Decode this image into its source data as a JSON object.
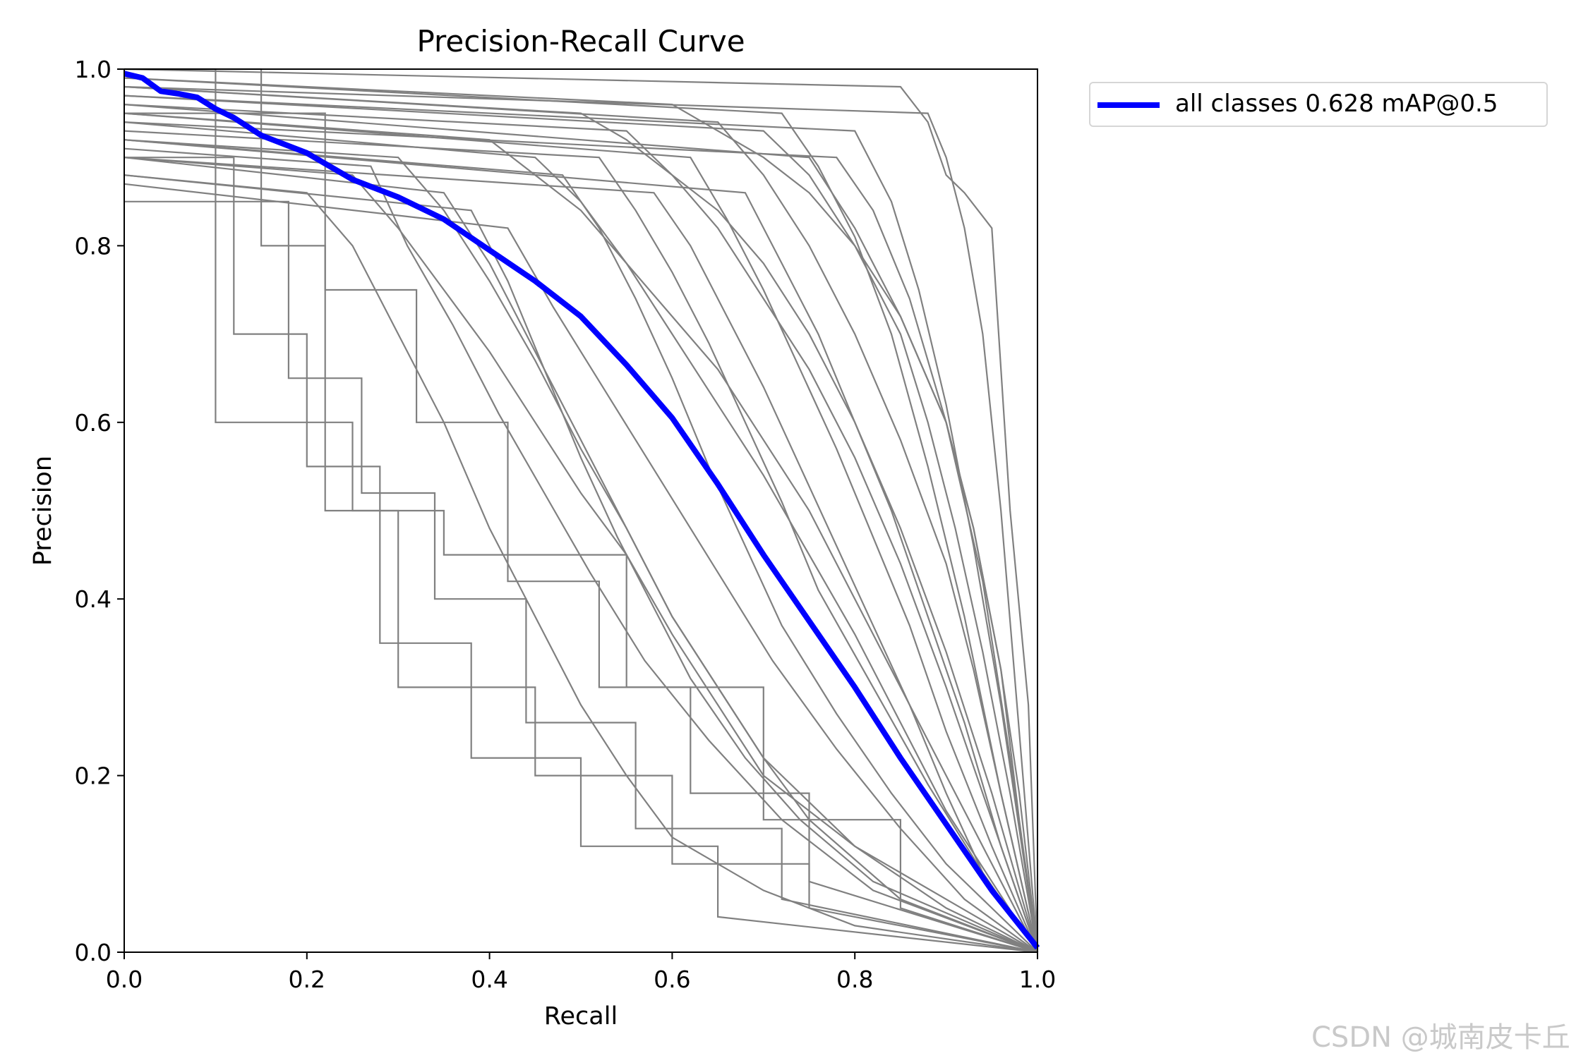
{
  "chart_data": {
    "type": "line",
    "title": "Precision-Recall Curve",
    "xlabel": "Recall",
    "ylabel": "Precision",
    "xlim": [
      0.0,
      1.0
    ],
    "ylim": [
      0.0,
      1.0
    ],
    "xticks": [
      "0.0",
      "0.2",
      "0.4",
      "0.6",
      "0.8",
      "1.0"
    ],
    "yticks": [
      "0.0",
      "0.2",
      "0.4",
      "0.6",
      "0.8",
      "1.0"
    ],
    "grid": false,
    "legend_position": "outside-top-right",
    "main_series": {
      "name": "all classes 0.628 mAP@0.5",
      "color": "#0000ff",
      "x": [
        0.0,
        0.02,
        0.04,
        0.06,
        0.08,
        0.1,
        0.12,
        0.15,
        0.2,
        0.25,
        0.3,
        0.35,
        0.4,
        0.45,
        0.5,
        0.55,
        0.6,
        0.65,
        0.7,
        0.75,
        0.8,
        0.85,
        0.9,
        0.95,
        1.0
      ],
      "y": [
        0.995,
        0.99,
        0.975,
        0.972,
        0.968,
        0.955,
        0.945,
        0.925,
        0.905,
        0.875,
        0.855,
        0.83,
        0.795,
        0.76,
        0.72,
        0.665,
        0.605,
        0.53,
        0.45,
        0.375,
        0.3,
        0.22,
        0.145,
        0.07,
        0.005
      ]
    },
    "class_series_color": "#808080",
    "class_series": [
      {
        "x": [
          0.0,
          0.1,
          0.1,
          0.25,
          0.25,
          0.35,
          0.35,
          0.55,
          0.55,
          0.7,
          0.7,
          0.85,
          0.85,
          1.0
        ],
        "y": [
          1.0,
          1.0,
          0.6,
          0.6,
          0.5,
          0.5,
          0.45,
          0.45,
          0.3,
          0.3,
          0.15,
          0.15,
          0.05,
          0.0
        ]
      },
      {
        "x": [
          0.0,
          0.15,
          0.15,
          0.22,
          0.22,
          0.3,
          0.3,
          0.45,
          0.45,
          0.6,
          0.6,
          0.75,
          0.75,
          1.0
        ],
        "y": [
          1.0,
          1.0,
          0.8,
          0.8,
          0.5,
          0.5,
          0.3,
          0.3,
          0.2,
          0.2,
          0.1,
          0.1,
          0.05,
          0.0
        ]
      },
      {
        "x": [
          0.0,
          0.25,
          0.3,
          0.35,
          0.4,
          0.45,
          0.5,
          0.55,
          0.6,
          0.65,
          0.7,
          0.8,
          0.9,
          1.0
        ],
        "y": [
          0.9,
          0.88,
          0.82,
          0.75,
          0.68,
          0.6,
          0.52,
          0.45,
          0.36,
          0.28,
          0.2,
          0.12,
          0.06,
          0.0
        ]
      },
      {
        "x": [
          0.0,
          0.4,
          0.45,
          0.5,
          0.55,
          0.6,
          0.65,
          0.7,
          0.75,
          0.8,
          0.85,
          0.9,
          0.95,
          1.0
        ],
        "y": [
          0.95,
          0.92,
          0.88,
          0.84,
          0.78,
          0.72,
          0.66,
          0.58,
          0.5,
          0.4,
          0.3,
          0.2,
          0.1,
          0.0
        ]
      },
      {
        "x": [
          0.0,
          0.5,
          0.55,
          0.6,
          0.65,
          0.7,
          0.75,
          0.8,
          0.85,
          0.9,
          0.95,
          1.0
        ],
        "y": [
          0.98,
          0.95,
          0.92,
          0.88,
          0.84,
          0.78,
          0.7,
          0.6,
          0.48,
          0.34,
          0.18,
          0.0
        ]
      },
      {
        "x": [
          0.0,
          0.6,
          0.65,
          0.7,
          0.75,
          0.8,
          0.85,
          0.9,
          0.93,
          0.96,
          0.98,
          1.0
        ],
        "y": [
          0.99,
          0.96,
          0.93,
          0.9,
          0.86,
          0.8,
          0.72,
          0.6,
          0.48,
          0.32,
          0.15,
          0.0
        ]
      },
      {
        "x": [
          0.0,
          0.7,
          0.75,
          0.8,
          0.85,
          0.88,
          0.91,
          0.94,
          0.97,
          1.0
        ],
        "y": [
          0.97,
          0.93,
          0.88,
          0.8,
          0.7,
          0.6,
          0.48,
          0.34,
          0.18,
          0.0
        ]
      },
      {
        "x": [
          0.0,
          0.85,
          0.88,
          0.9,
          0.92,
          0.95,
          0.97,
          0.99,
          1.0
        ],
        "y": [
          1.0,
          0.98,
          0.94,
          0.88,
          0.86,
          0.82,
          0.5,
          0.28,
          0.0
        ]
      },
      {
        "x": [
          0.0,
          0.2,
          0.25,
          0.3,
          0.35,
          0.4,
          0.45,
          0.5,
          0.55,
          0.6,
          0.7,
          0.8,
          1.0
        ],
        "y": [
          0.88,
          0.86,
          0.8,
          0.7,
          0.6,
          0.48,
          0.38,
          0.28,
          0.2,
          0.13,
          0.07,
          0.03,
          0.0
        ]
      },
      {
        "x": [
          0.0,
          0.3,
          0.35,
          0.4,
          0.45,
          0.5,
          0.55,
          0.6,
          0.65,
          0.7,
          0.8,
          0.9,
          1.0
        ],
        "y": [
          0.92,
          0.9,
          0.84,
          0.76,
          0.67,
          0.57,
          0.48,
          0.38,
          0.3,
          0.22,
          0.12,
          0.05,
          0.0
        ]
      },
      {
        "x": [
          0.0,
          0.45,
          0.5,
          0.55,
          0.6,
          0.65,
          0.7,
          0.75,
          0.8,
          0.85,
          0.9,
          0.95,
          1.0
        ],
        "y": [
          0.94,
          0.9,
          0.85,
          0.78,
          0.7,
          0.62,
          0.54,
          0.45,
          0.36,
          0.26,
          0.16,
          0.08,
          0.0
        ]
      },
      {
        "x": [
          0.0,
          0.55,
          0.6,
          0.65,
          0.7,
          0.75,
          0.8,
          0.85,
          0.9,
          0.95,
          1.0
        ],
        "y": [
          0.96,
          0.93,
          0.88,
          0.82,
          0.74,
          0.66,
          0.56,
          0.44,
          0.3,
          0.15,
          0.0
        ]
      },
      {
        "x": [
          0.0,
          0.65,
          0.7,
          0.75,
          0.8,
          0.85,
          0.9,
          0.93,
          0.96,
          1.0
        ],
        "y": [
          0.98,
          0.94,
          0.88,
          0.8,
          0.7,
          0.58,
          0.44,
          0.32,
          0.18,
          0.0
        ]
      },
      {
        "x": [
          0.0,
          0.75,
          0.8,
          0.85,
          0.9,
          0.93,
          0.96,
          0.98,
          1.0
        ],
        "y": [
          0.96,
          0.9,
          0.82,
          0.72,
          0.6,
          0.48,
          0.32,
          0.18,
          0.0
        ]
      },
      {
        "x": [
          0.0,
          0.35,
          0.4,
          0.45,
          0.5,
          0.55,
          0.6,
          0.65,
          0.7,
          0.75,
          0.85,
          1.0
        ],
        "y": [
          0.9,
          0.86,
          0.78,
          0.68,
          0.58,
          0.48,
          0.38,
          0.3,
          0.22,
          0.15,
          0.06,
          0.0
        ]
      },
      {
        "x": [
          0.0,
          0.12,
          0.12,
          0.2,
          0.2,
          0.28,
          0.28,
          0.38,
          0.38,
          0.5,
          0.5,
          0.65,
          0.65,
          1.0
        ],
        "y": [
          0.9,
          0.9,
          0.7,
          0.7,
          0.55,
          0.55,
          0.35,
          0.35,
          0.22,
          0.22,
          0.12,
          0.12,
          0.04,
          0.0
        ]
      },
      {
        "x": [
          0.0,
          0.22,
          0.22,
          0.32,
          0.32,
          0.42,
          0.42,
          0.52,
          0.52,
          0.62,
          0.62,
          0.75,
          0.75,
          1.0
        ],
        "y": [
          0.95,
          0.95,
          0.75,
          0.75,
          0.6,
          0.6,
          0.42,
          0.42,
          0.3,
          0.3,
          0.18,
          0.18,
          0.08,
          0.0
        ]
      },
      {
        "x": [
          0.0,
          0.58,
          0.62,
          0.66,
          0.7,
          0.74,
          0.78,
          0.82,
          0.86,
          0.9,
          0.94,
          1.0
        ],
        "y": [
          0.9,
          0.86,
          0.8,
          0.72,
          0.64,
          0.55,
          0.46,
          0.37,
          0.28,
          0.18,
          0.09,
          0.0
        ]
      },
      {
        "x": [
          0.0,
          0.68,
          0.72,
          0.76,
          0.8,
          0.84,
          0.88,
          0.92,
          0.96,
          1.0
        ],
        "y": [
          0.92,
          0.86,
          0.78,
          0.7,
          0.6,
          0.5,
          0.38,
          0.26,
          0.12,
          0.0
        ]
      },
      {
        "x": [
          0.0,
          0.78,
          0.82,
          0.86,
          0.9,
          0.94,
          0.97,
          1.0
        ],
        "y": [
          0.94,
          0.9,
          0.84,
          0.74,
          0.6,
          0.42,
          0.22,
          0.0
        ]
      },
      {
        "x": [
          0.0,
          0.48,
          0.52,
          0.56,
          0.6,
          0.64,
          0.68,
          0.72,
          0.78,
          0.84,
          0.9,
          1.0
        ],
        "y": [
          0.92,
          0.88,
          0.82,
          0.74,
          0.65,
          0.55,
          0.46,
          0.37,
          0.27,
          0.18,
          0.1,
          0.0
        ]
      },
      {
        "x": [
          0.0,
          0.38,
          0.42,
          0.46,
          0.5,
          0.54,
          0.58,
          0.62,
          0.68,
          0.74,
          0.82,
          1.0
        ],
        "y": [
          0.88,
          0.84,
          0.76,
          0.66,
          0.56,
          0.47,
          0.39,
          0.31,
          0.22,
          0.15,
          0.08,
          0.0
        ]
      },
      {
        "x": [
          0.0,
          0.62,
          0.66,
          0.7,
          0.74,
          0.78,
          0.82,
          0.86,
          0.9,
          0.95,
          1.0
        ],
        "y": [
          0.95,
          0.9,
          0.83,
          0.75,
          0.66,
          0.57,
          0.47,
          0.37,
          0.25,
          0.12,
          0.0
        ]
      },
      {
        "x": [
          0.0,
          0.8,
          0.84,
          0.87,
          0.9,
          0.93,
          0.96,
          1.0
        ],
        "y": [
          0.97,
          0.93,
          0.85,
          0.75,
          0.62,
          0.46,
          0.28,
          0.0
        ]
      },
      {
        "x": [
          0.0,
          0.18,
          0.18,
          0.26,
          0.26,
          0.34,
          0.34,
          0.44,
          0.44,
          0.56,
          0.56,
          0.72,
          0.72,
          1.0
        ],
        "y": [
          0.85,
          0.85,
          0.65,
          0.65,
          0.52,
          0.52,
          0.4,
          0.4,
          0.26,
          0.26,
          0.14,
          0.14,
          0.06,
          0.0
        ]
      },
      {
        "x": [
          0.0,
          0.27,
          0.31,
          0.36,
          0.41,
          0.46,
          0.51,
          0.57,
          0.64,
          0.72,
          0.82,
          1.0
        ],
        "y": [
          0.91,
          0.89,
          0.8,
          0.71,
          0.61,
          0.52,
          0.43,
          0.33,
          0.24,
          0.15,
          0.07,
          0.0
        ]
      },
      {
        "x": [
          0.0,
          0.52,
          0.56,
          0.6,
          0.64,
          0.68,
          0.72,
          0.76,
          0.82,
          0.88,
          0.94,
          1.0
        ],
        "y": [
          0.93,
          0.9,
          0.84,
          0.77,
          0.69,
          0.6,
          0.51,
          0.41,
          0.3,
          0.19,
          0.09,
          0.0
        ]
      },
      {
        "x": [
          0.0,
          0.72,
          0.76,
          0.8,
          0.84,
          0.88,
          0.92,
          0.96,
          1.0
        ],
        "y": [
          0.99,
          0.95,
          0.89,
          0.81,
          0.7,
          0.55,
          0.38,
          0.18,
          0.0
        ]
      },
      {
        "x": [
          0.0,
          0.42,
          0.47,
          0.53,
          0.59,
          0.65,
          0.71,
          0.78,
          0.85,
          0.92,
          1.0
        ],
        "y": [
          0.87,
          0.82,
          0.73,
          0.63,
          0.53,
          0.43,
          0.33,
          0.23,
          0.14,
          0.06,
          0.0
        ]
      },
      {
        "x": [
          0.0,
          0.88,
          0.9,
          0.92,
          0.94,
          0.96,
          0.98,
          1.0
        ],
        "y": [
          0.98,
          0.95,
          0.9,
          0.82,
          0.7,
          0.5,
          0.25,
          0.0
        ]
      }
    ],
    "watermark": "CSDN @城南皮卡丘"
  }
}
